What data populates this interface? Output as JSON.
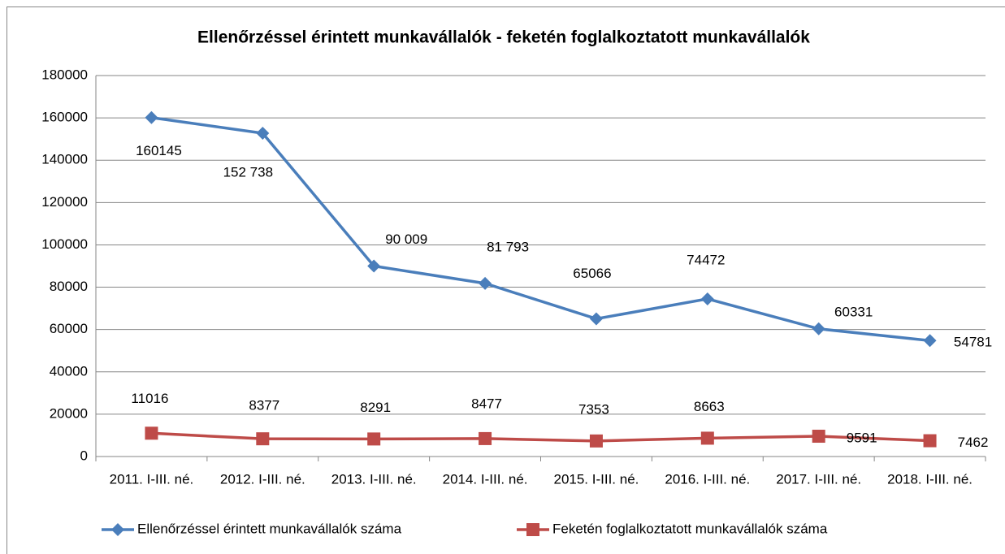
{
  "chart_data": {
    "type": "line",
    "title": "Ellenőrzéssel érintett munkavállalók - feketén foglalkoztatott munkavállalók",
    "categories": [
      "2011. I-III. né.",
      "2012. I-III. né.",
      "2013. I-III. né.",
      "2014. I-III. né.",
      "2015. I-III. né.",
      "2016. I-III. né.",
      "2017. I-III. né.",
      "2018. I-III. né."
    ],
    "series": [
      {
        "name": "Ellenőrzéssel érintett munkavállalók száma",
        "color": "#4a7ebb",
        "marker": "diamond",
        "values": [
          160145,
          152738,
          90009,
          81793,
          65066,
          74472,
          60331,
          54781
        ],
        "value_labels": [
          "160145",
          "152 738",
          "90 009",
          "81 793",
          "65066",
          "74472",
          "60331",
          "54781"
        ]
      },
      {
        "name": "Feketén foglalkoztatott munkavállalók száma",
        "color": "#be4b48",
        "marker": "square",
        "values": [
          11016,
          8377,
          8291,
          8477,
          7353,
          8663,
          9591,
          7462
        ]
      }
    ],
    "ylim": [
      0,
      180000
    ],
    "yticks": [
      0,
      20000,
      40000,
      60000,
      80000,
      100000,
      120000,
      140000,
      160000,
      180000
    ],
    "grid": true,
    "legend": "bottom"
  }
}
